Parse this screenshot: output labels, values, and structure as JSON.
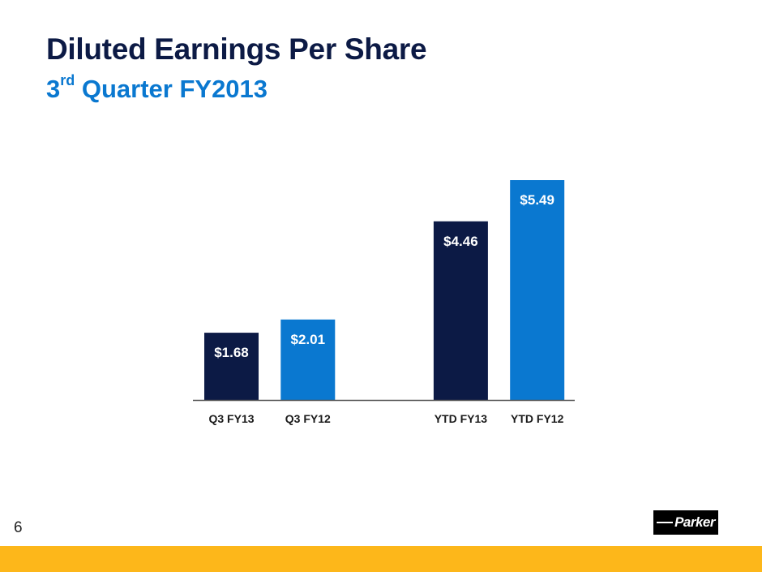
{
  "slide": {
    "title": "Diluted Earnings Per Share",
    "subtitle_prefix": "3",
    "subtitle_sup": "rd",
    "subtitle_rest": " Quarter FY2013",
    "page_number": "6",
    "logo_text": "Parker",
    "colors": {
      "title": "#0c1a45",
      "subtitle": "#0a78d0",
      "footer_bar": "#fdb71a"
    }
  },
  "chart_data": {
    "type": "bar",
    "title": "Diluted Earnings Per Share",
    "subtitle": "3rd Quarter FY2013",
    "xlabel": "",
    "ylabel": "",
    "ylim": [
      0,
      5.49
    ],
    "grid": false,
    "legend": "none",
    "categories": [
      "Q3 FY13",
      "Q3 FY12",
      "",
      "YTD FY13",
      "YTD FY12"
    ],
    "values": [
      1.68,
      2.01,
      null,
      4.46,
      5.49
    ],
    "data_labels": [
      "$1.68",
      "$2.01",
      "",
      "$4.46",
      "$5.49"
    ],
    "bar_colors": [
      "#0c1a45",
      "#0a78d0",
      null,
      "#0c1a45",
      "#0a78d0"
    ]
  }
}
